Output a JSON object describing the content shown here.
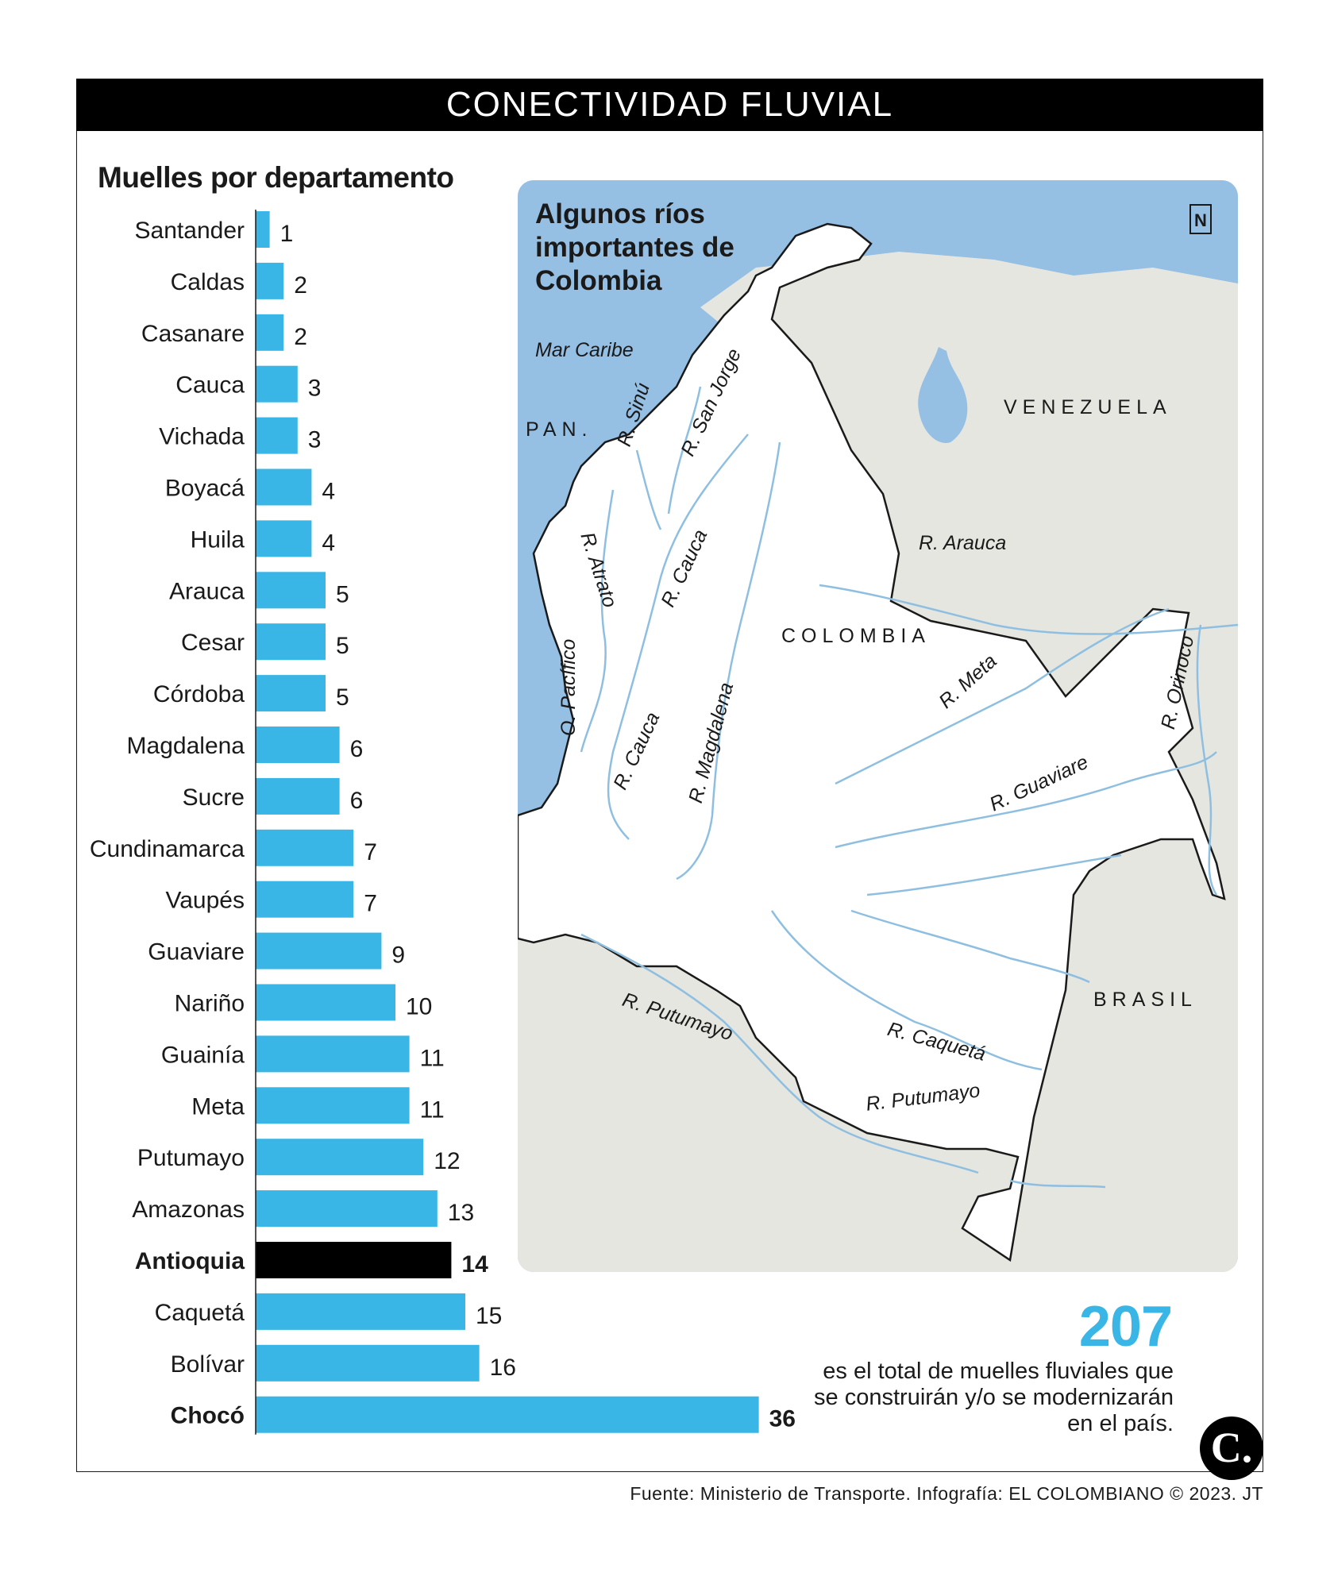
{
  "header": {
    "title": "CONECTIVIDAD FLUVIAL"
  },
  "chart_data": {
    "type": "bar",
    "orientation": "horizontal",
    "title": "Muelles por departamento",
    "categories": [
      "Santander",
      "Caldas",
      "Casanare",
      "Cauca",
      "Vichada",
      "Boyacá",
      "Huila",
      "Arauca",
      "Cesar",
      "Córdoba",
      "Magdalena",
      "Sucre",
      "Cundinamarca",
      "Vaupés",
      "Guaviare",
      "Nariño",
      "Guainía",
      "Meta",
      "Putumayo",
      "Amazonas",
      "Antioquia",
      "Caquetá",
      "Bolívar",
      "Chocó"
    ],
    "values": [
      1,
      2,
      2,
      3,
      3,
      4,
      4,
      5,
      5,
      5,
      6,
      6,
      7,
      7,
      9,
      10,
      11,
      11,
      12,
      13,
      14,
      15,
      16,
      36
    ],
    "highlight_black": [
      "Antioquia"
    ],
    "bold_labels": [
      "Antioquia",
      "Chocó"
    ],
    "colors": {
      "bar": "#39b5e6",
      "highlight": "#000000"
    }
  },
  "map": {
    "title": "Algunos ríos importantes de Colombia",
    "north_symbol": "N",
    "labels": {
      "sea": "Mar Caribe",
      "ocean": "O. Pacífico",
      "panama": "PAN.",
      "venezuela": "VENEZUELA",
      "colombia": "COLOMBIA",
      "brasil": "BRASIL",
      "r_arauca": "R. Arauca",
      "r_sinu": "R. Sinú",
      "r_san_jorge": "R. San Jorge",
      "r_atrato": "R. Atrato",
      "r_cauca_top": "R. Cauca",
      "r_cauca_bottom": "R. Cauca",
      "r_magdalena": "R. Magdalena",
      "r_meta": "R. Meta",
      "r_orinoco": "R. Orinoco",
      "r_guaviare": "R. Guaviare",
      "r_putumayo_1": "R. Putumayo",
      "r_putumayo_2": "R. Putumayo",
      "r_caqueta": "R. Caquetá"
    },
    "colors": {
      "water": "#95bfe3",
      "land": "#e6e6e1",
      "colombia": "#ffffff",
      "river": "#8fbfe0"
    }
  },
  "total": {
    "value": "207",
    "description": "es el total de muelles fluviales que se construirán y/o se modernizarán en el país."
  },
  "logo": {
    "letter": "C."
  },
  "footer": {
    "source": "Fuente: Ministerio de Transporte. Infografía: EL COLOMBIANO © 2023. JT"
  }
}
